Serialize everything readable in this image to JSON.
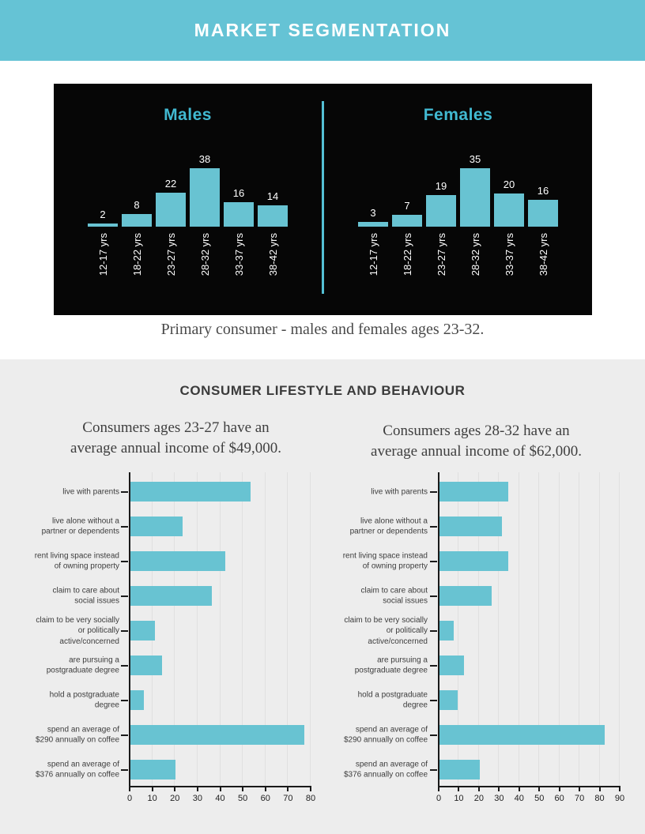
{
  "header": {
    "title": "MARKET SEGMENTATION"
  },
  "colors": {
    "banner": "#65c3d5",
    "bar": "#68c3d2",
    "chart_title": "#41b9d1",
    "divider": "#54c0d4",
    "panel": "#060606",
    "section": "#ededed",
    "grid": "#e0e0e0",
    "axis": "#1a1a1a",
    "label": "#3c3c3c",
    "caption": "#4a4a4a",
    "heading": "#3b3b3b"
  },
  "age_section": {
    "caption": "Primary consumer - males and females ages 23-32."
  },
  "lifestyle_section": {
    "heading": "CONSUMER LIFESTYLE AND BEHAVIOUR",
    "left_caption": [
      "Consumers ages 23-27 have an",
      "average annual income of $49,000."
    ],
    "right_caption": [
      "Consumers ages 28-32 have an",
      "average annual income of $62,000."
    ]
  },
  "chart_data": [
    {
      "id": "males-age",
      "type": "bar",
      "orientation": "vertical",
      "title": "Males",
      "categories": [
        "12-17 yrs",
        "18-22 yrs",
        "23-27 yrs",
        "28-32 yrs",
        "33-37 yrs",
        "38-42 yrs"
      ],
      "values": [
        2,
        8,
        22,
        38,
        16,
        14
      ],
      "value_labels_shown": true,
      "grid": false
    },
    {
      "id": "females-age",
      "type": "bar",
      "orientation": "vertical",
      "title": "Females",
      "categories": [
        "12-17 yrs",
        "18-22 yrs",
        "23-27 yrs",
        "28-32 yrs",
        "33-37 yrs",
        "38-42 yrs"
      ],
      "values": [
        3,
        7,
        19,
        35,
        20,
        16
      ],
      "value_labels_shown": true,
      "grid": false
    },
    {
      "id": "lifestyle-23-27",
      "type": "bar",
      "orientation": "horizontal",
      "title": "Consumers ages 23-27 have an average annual income of $49,000.",
      "categories": [
        [
          "live with parents"
        ],
        [
          "live alone without a",
          "partner or dependents"
        ],
        [
          "rent living space instead",
          "of owning property"
        ],
        [
          "claim to care about",
          "social issues"
        ],
        [
          "claim to be very socially",
          "or politically",
          "active/concerned"
        ],
        [
          "are pursuing a",
          "postgraduate degree"
        ],
        [
          "hold a postgraduate",
          "degree"
        ],
        [
          "spend an average of",
          "$290 annually on coffee"
        ],
        [
          "spend an average of",
          "$376 annually on coffee"
        ]
      ],
      "values": [
        53,
        23,
        42,
        36,
        11,
        14,
        6,
        77,
        20
      ],
      "xlim": [
        0,
        80
      ],
      "xticks": [
        0,
        10,
        20,
        30,
        40,
        50,
        60,
        70,
        80
      ],
      "grid": true
    },
    {
      "id": "lifestyle-28-32",
      "type": "bar",
      "orientation": "horizontal",
      "title": "Consumers ages 28-32 have an average annual income of $62,000.",
      "categories": [
        [
          "live with parents"
        ],
        [
          "live alone without a",
          "partner or dependents"
        ],
        [
          "rent living space instead",
          "of owning property"
        ],
        [
          "claim to care about",
          "social issues"
        ],
        [
          "claim to be very socially",
          "or politically",
          "active/concerned"
        ],
        [
          "are pursuing a",
          "postgraduate degree"
        ],
        [
          "hold a postgraduate",
          "degree"
        ],
        [
          "spend an average of",
          "$290 annually on coffee"
        ],
        [
          "spend an average of",
          "$376 annually on coffee"
        ]
      ],
      "values": [
        34,
        31,
        34,
        26,
        7,
        12,
        9,
        82,
        20
      ],
      "xlim": [
        0,
        90
      ],
      "xticks": [
        0,
        10,
        20,
        30,
        40,
        50,
        60,
        70,
        80,
        90
      ],
      "grid": true
    }
  ]
}
